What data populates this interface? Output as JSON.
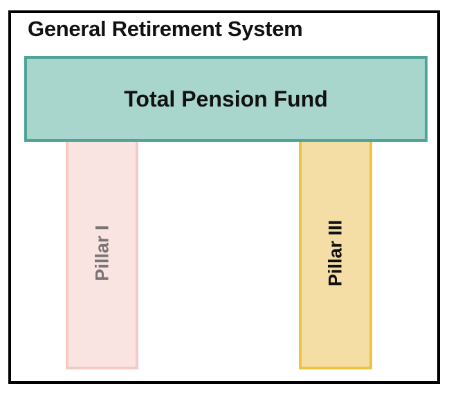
{
  "diagram": {
    "title": "General Retirement System",
    "fund": {
      "label": "Total Pension Fund",
      "fill": "#a8d5cc",
      "border": "#4fa497"
    },
    "pillars": [
      {
        "label": "Pillar I",
        "fill": "#fae4e2",
        "border": "#f6c9c3",
        "text_color": "#7a7474"
      },
      {
        "label": "Pillar III",
        "fill": "#f5dda6",
        "border": "#eec33f",
        "text_color": "#111111"
      }
    ]
  }
}
